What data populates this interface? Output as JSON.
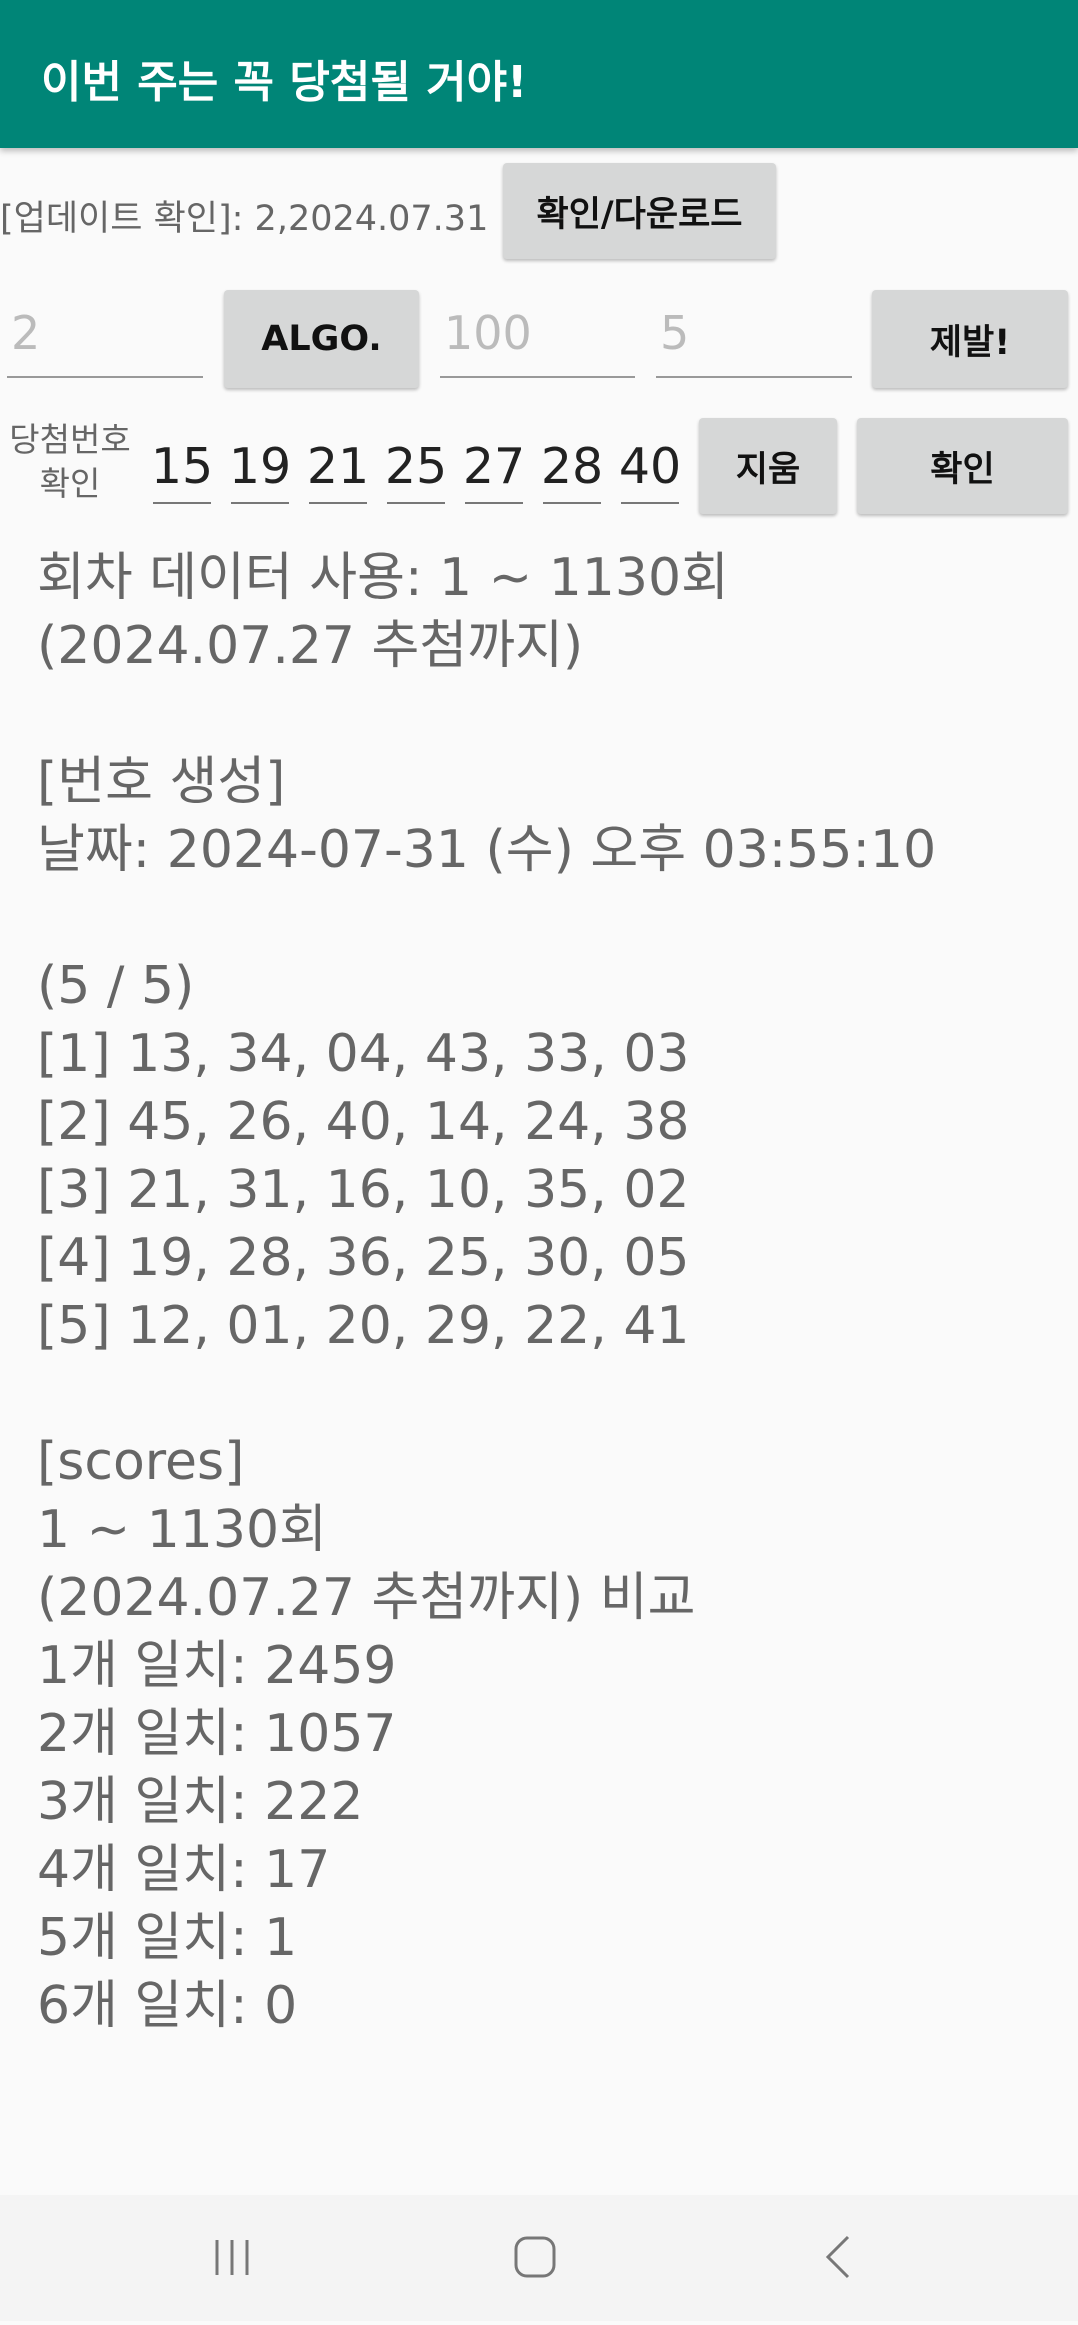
{
  "app_bar": {
    "title": "이번 주는 꼭 당첨될 거야!"
  },
  "update_row": {
    "label": "[업데이트 확인]: 2,2024.07.31",
    "button": "확인/다운로드"
  },
  "input_row": {
    "field_1": "2",
    "algo_button": "ALGO.",
    "field_2": "100",
    "field_3": "5",
    "go_button": "제발!"
  },
  "winning_row": {
    "label": [
      "당첨번호",
      "확인"
    ],
    "numbers": [
      "15",
      "19",
      "21",
      "25",
      "27",
      "28",
      "40"
    ],
    "clear_button": "지움",
    "check_button": "확인"
  },
  "output": {
    "blocks": [
      [
        "회차 데이터 사용: 1 ~ 1130회",
        "(2024.07.27 추첨까지)"
      ],
      [
        "[번호 생성]",
        "날짜: 2024-07-31 (수) 오후 03:55:10"
      ],
      [
        "(5 / 5)",
        "[1] 13, 34, 04, 43, 33, 03",
        "[2] 45, 26, 40, 14, 24, 38",
        "[3] 21, 31, 16, 10, 35, 02",
        "[4] 19, 28, 36, 25, 30, 05",
        "[5] 12, 01, 20, 29, 22, 41"
      ],
      [
        "[scores]",
        "1 ~ 1130회",
        "(2024.07.27 추첨까지) 비교",
        "1개 일치: 2459",
        "2개 일치: 1057",
        "3개 일치: 222",
        "4개 일치: 17",
        "5개 일치: 1",
        "6개 일치: 0"
      ]
    ]
  }
}
